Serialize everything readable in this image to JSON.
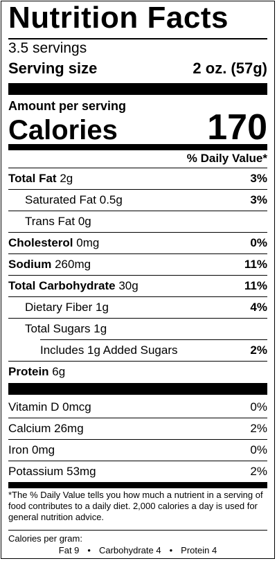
{
  "label": {
    "title": "Nutrition Facts",
    "servings": "3.5 servings",
    "serving_size_label": "Serving size",
    "serving_size_value": "2 oz. (57g)",
    "amount_per_serving": "Amount per serving",
    "calories_label": "Calories",
    "calories_value": "170",
    "dv_header": "% Daily Value*",
    "nutrients": [
      {
        "name": "Total Fat",
        "amount": "2g",
        "dv": "3%"
      },
      {
        "name": "Saturated Fat",
        "amount": "0.5g",
        "dv": "3%"
      },
      {
        "name": "Trans Fat",
        "amount": "0g",
        "dv": ""
      },
      {
        "name": "Cholesterol",
        "amount": "0mg",
        "dv": "0%"
      },
      {
        "name": "Sodium",
        "amount": "260mg",
        "dv": "11%"
      },
      {
        "name": "Total Carbohydrate",
        "amount": "30g",
        "dv": "11%"
      },
      {
        "name": "Dietary Fiber",
        "amount": "1g",
        "dv": "4%"
      },
      {
        "name": "Total Sugars",
        "amount": "1g",
        "dv": ""
      },
      {
        "name": "Includes 1g Added Sugars",
        "amount": "",
        "dv": "2%"
      },
      {
        "name": "Protein",
        "amount": "6g",
        "dv": ""
      }
    ],
    "vitamins": [
      {
        "name": "Vitamin D",
        "amount": "0mcg",
        "dv": "0%"
      },
      {
        "name": "Calcium",
        "amount": "26mg",
        "dv": "2%"
      },
      {
        "name": "Iron",
        "amount": "0mg",
        "dv": "0%"
      },
      {
        "name": "Potassium",
        "amount": "53mg",
        "dv": "2%"
      }
    ],
    "footnote": "*The % Daily Value tells you how much a nutrient in a serving of food contributes to a daily diet. 2,000 calories a day is used for general nutrition advice.",
    "calories_per_gram_label": "Calories per gram:",
    "calories_per_gram": {
      "fat": "Fat 9",
      "carbohydrate": "Carbohydrate 4",
      "protein": "Protein 4",
      "separator": "•"
    }
  }
}
